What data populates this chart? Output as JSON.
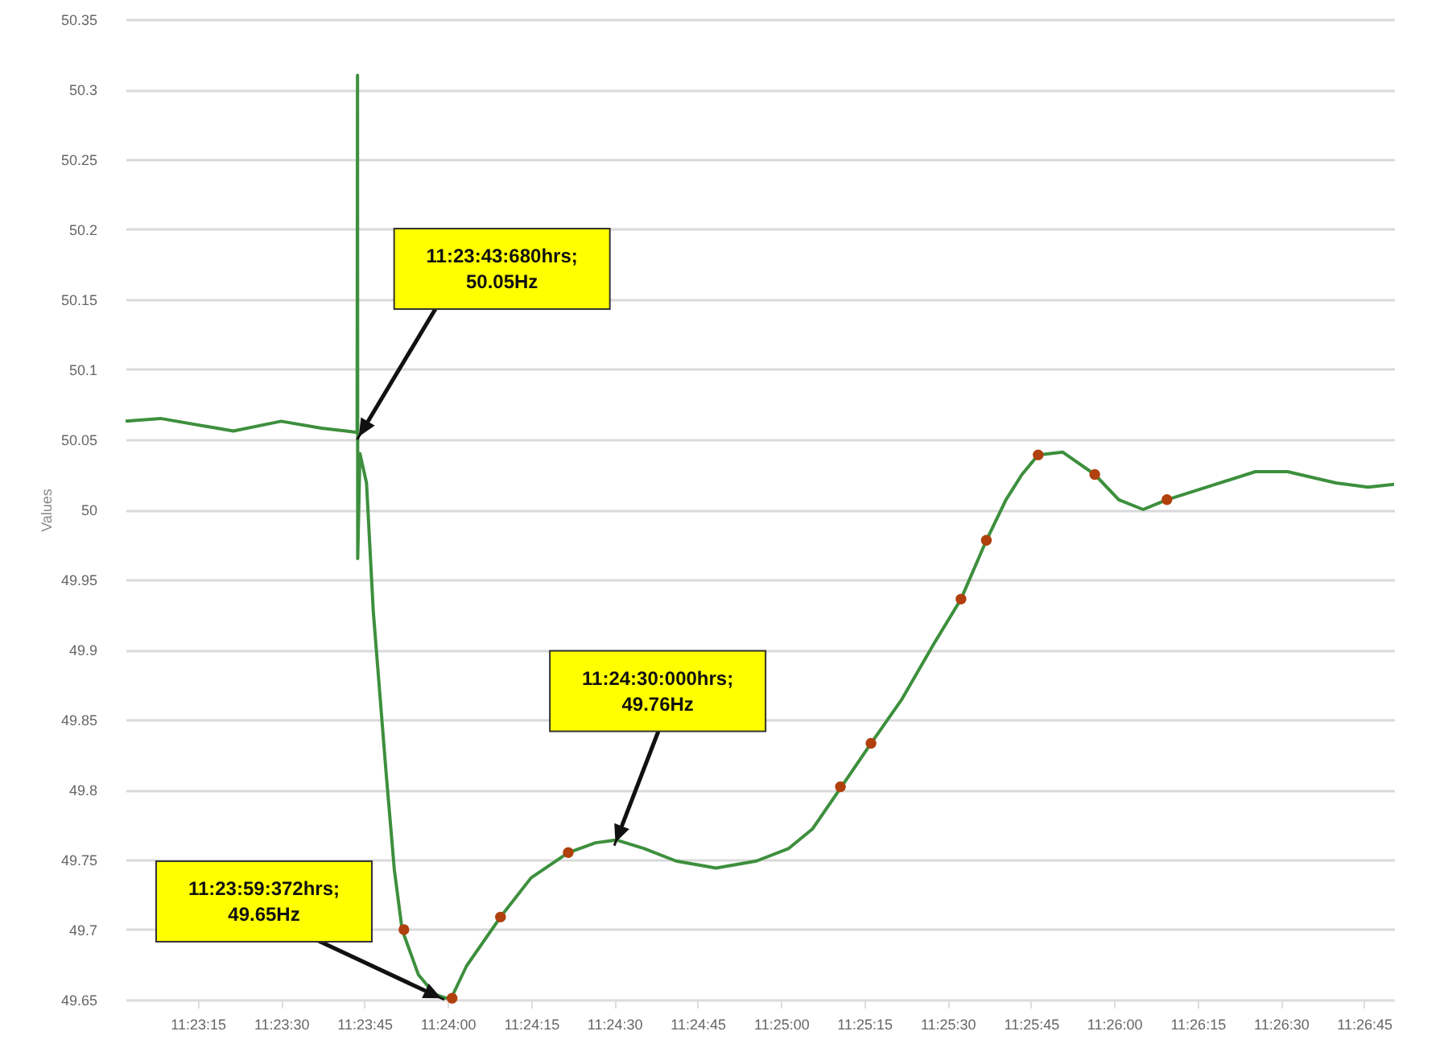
{
  "chart_data": {
    "type": "line",
    "ylabel": "Values",
    "grid": "y",
    "xlim": [
      11.38389,
      11.44733
    ],
    "ylim": [
      49.65,
      50.35
    ],
    "xticks": [
      {
        "value": 11.3875,
        "label": "11:23:15"
      },
      {
        "value": 11.39167,
        "label": "11:23:30"
      },
      {
        "value": 11.39583,
        "label": "11:23:45"
      },
      {
        "value": 11.4,
        "label": "11:24:00"
      },
      {
        "value": 11.40417,
        "label": "11:24:15"
      },
      {
        "value": 11.40833,
        "label": "11:24:30"
      },
      {
        "value": 11.4125,
        "label": "11:24:45"
      },
      {
        "value": 11.41667,
        "label": "11:25:00"
      },
      {
        "value": 11.42083,
        "label": "11:25:15"
      },
      {
        "value": 11.425,
        "label": "11:25:30"
      },
      {
        "value": 11.42917,
        "label": "11:25:45"
      },
      {
        "value": 11.43333,
        "label": "11:26:00"
      },
      {
        "value": 11.4375,
        "label": "11:26:15"
      },
      {
        "value": 11.44167,
        "label": "11:26:30"
      },
      {
        "value": 11.44583,
        "label": "11:26:45"
      }
    ],
    "yticks": [
      49.65,
      49.7,
      49.75,
      49.8,
      49.85,
      49.9,
      49.95,
      50,
      50.05,
      50.1,
      50.15,
      50.2,
      50.25,
      50.3,
      50.35
    ],
    "series": [
      {
        "type": "line",
        "color": "#3d8f3d",
        "x": [
          11.38389,
          11.38564,
          11.38806,
          11.38928,
          11.39167,
          11.39369,
          11.39492,
          11.39547,
          11.39549,
          11.3955,
          11.39561,
          11.39594,
          11.39628,
          11.39692,
          11.39733,
          11.39772,
          11.39853,
          11.39933,
          11.40014,
          11.40094,
          11.40264,
          11.40417,
          11.40603,
          11.40739,
          11.40844,
          11.40981,
          11.41142,
          11.41342,
          11.41544,
          11.41706,
          11.41825,
          11.41964,
          11.42117,
          11.42269,
          11.42431,
          11.42567,
          11.42694,
          11.42792,
          11.42872,
          11.42953,
          11.43075,
          11.43236,
          11.43356,
          11.43478,
          11.43597,
          11.43797,
          11.44039,
          11.442,
          11.44442,
          11.44603,
          11.44733
        ],
        "values": [
          50.063,
          50.065,
          50.059,
          50.056,
          50.063,
          50.058,
          50.056,
          50.055,
          50.31,
          49.965,
          50.04,
          50.019,
          49.927,
          49.812,
          49.743,
          49.7,
          49.668,
          49.654,
          49.65,
          49.674,
          49.709,
          49.737,
          49.755,
          49.762,
          49.764,
          49.758,
          49.749,
          49.744,
          49.749,
          49.758,
          49.772,
          49.801,
          49.833,
          49.864,
          49.904,
          49.936,
          49.978,
          50.007,
          50.025,
          50.039,
          50.041,
          50.025,
          50.007,
          50.0,
          50.007,
          50.016,
          50.027,
          50.027,
          50.019,
          50.016,
          50.018
        ]
      },
      {
        "type": "scatter",
        "color": "#b0400e",
        "marker": "circle",
        "x": [
          11.39781,
          11.40022,
          11.40264,
          11.40603,
          11.41964,
          11.42117,
          11.42567,
          11.42694,
          11.42953,
          11.43236,
          11.43597
        ],
        "values": [
          49.7,
          49.651,
          49.709,
          49.755,
          49.802,
          49.833,
          49.936,
          49.978,
          50.039,
          50.025,
          50.007
        ]
      }
    ],
    "annotations": [
      {
        "text": "11:23:43:680hrs;\n50.05Hz",
        "x": 11.39547,
        "y": 50.05
      },
      {
        "text": "11:24:30:000hrs;\n49.76Hz",
        "x": 11.40833,
        "y": 49.76
      },
      {
        "text": "11:23:59:372hrs;\n49.65Hz",
        "x": 11.39983,
        "y": 49.65
      }
    ]
  }
}
